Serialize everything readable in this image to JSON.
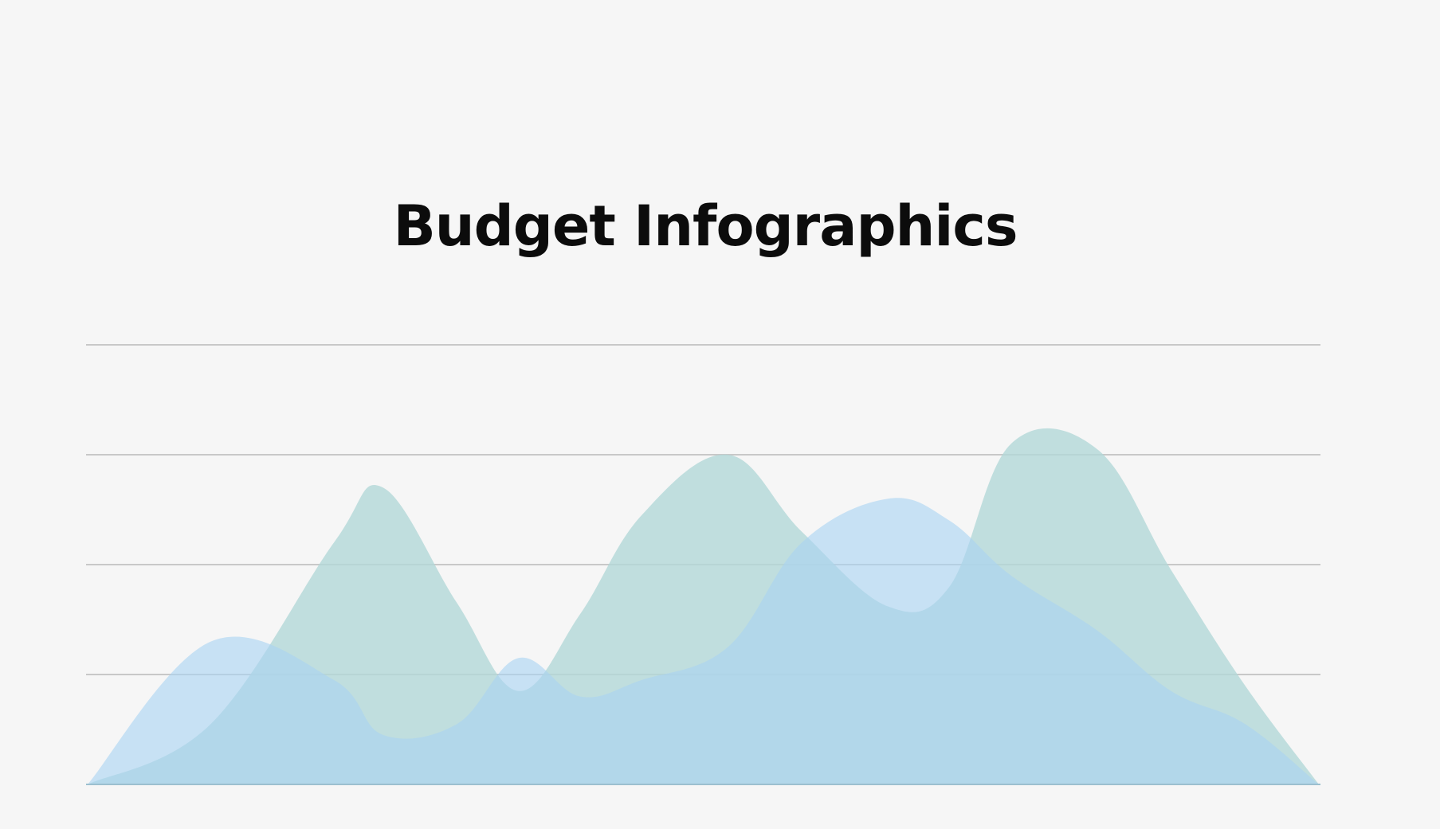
{
  "chart_data": {
    "type": "area",
    "title": "Budget Infographics",
    "xlabel": "",
    "ylabel": "",
    "grid": true,
    "legend": "none",
    "x": [
      0,
      0.1,
      0.2,
      0.24,
      0.3,
      0.35,
      0.4,
      0.45,
      0.52,
      0.58,
      0.65,
      0.7,
      0.75,
      0.82,
      0.88,
      0.94,
      1.0
    ],
    "ylim": [
      0,
      4
    ],
    "series": [
      {
        "color": "#b3d8d8",
        "values": [
          0,
          0.55,
          2.2,
          2.7,
          1.65,
          0.85,
          1.55,
          2.45,
          3.0,
          2.3,
          1.62,
          1.8,
          3.1,
          3.05,
          1.95,
          0.9,
          0
        ]
      },
      {
        "color": "#a9d3f2",
        "values": [
          0,
          1.3,
          0.95,
          0.45,
          0.55,
          1.15,
          0.8,
          0.95,
          1.25,
          2.2,
          2.6,
          2.4,
          1.9,
          1.4,
          0.85,
          0.55,
          0
        ]
      }
    ]
  }
}
